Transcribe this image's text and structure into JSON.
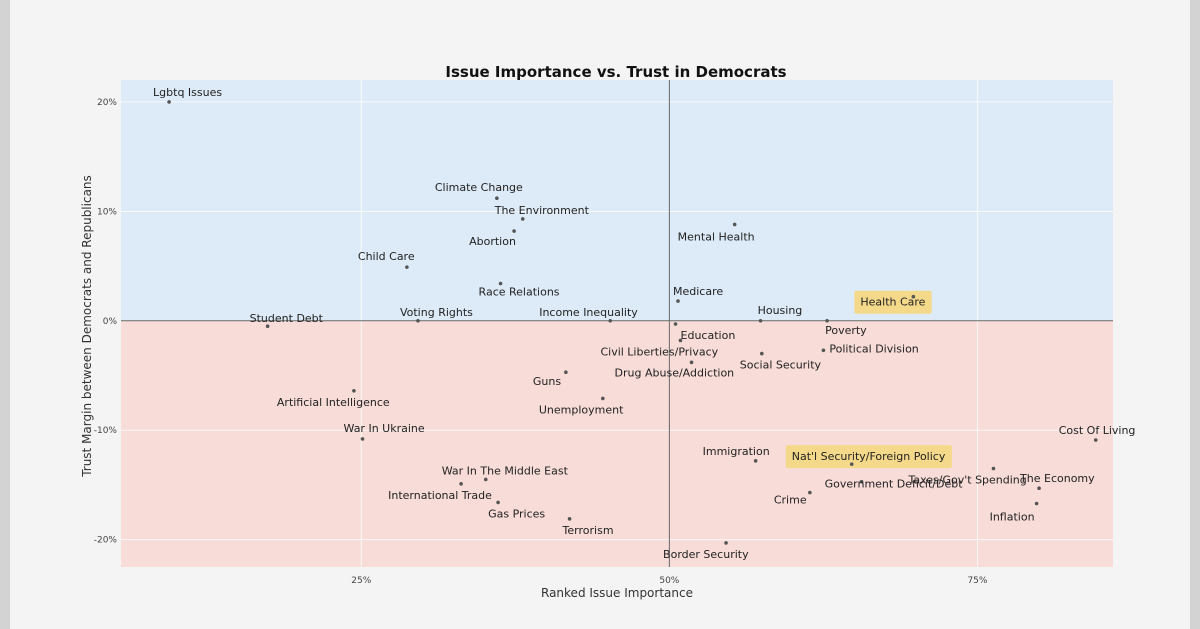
{
  "chart_data": {
    "type": "scatter",
    "title": "Issue Importance vs. Trust in Democrats",
    "xlabel": "Ranked Issue Importance",
    "ylabel": "Trust Margin between Democrats and Republicans",
    "xlim": [
      0.055,
      0.86
    ],
    "ylim": [
      -0.225,
      0.22
    ],
    "x_ticks": [
      {
        "value": 0.25,
        "label": "25%"
      },
      {
        "value": 0.5,
        "label": "50%"
      },
      {
        "value": 0.75,
        "label": "75%"
      }
    ],
    "y_ticks": [
      {
        "value": 0.2,
        "label": "20%"
      },
      {
        "value": 0.1,
        "label": "10%"
      },
      {
        "value": 0.0,
        "label": "0%"
      },
      {
        "value": -0.1,
        "label": "-10%"
      },
      {
        "value": -0.2,
        "label": "-20%"
      }
    ],
    "colors": {
      "positive_region": "#ddeaf7",
      "negative_region": "#f7dcd8",
      "highlight": "#f5d98a",
      "point": "#555555",
      "axis_line": "#666666"
    },
    "points": [
      {
        "label": "Lgbtq Issues",
        "x": 0.094,
        "y": 0.2
      },
      {
        "label": "Climate Change",
        "x": 0.36,
        "y": 0.112
      },
      {
        "label": "The Environment",
        "x": 0.381,
        "y": 0.093
      },
      {
        "label": "Abortion",
        "x": 0.374,
        "y": 0.082
      },
      {
        "label": "Mental Health",
        "x": 0.553,
        "y": 0.088
      },
      {
        "label": "Child Care",
        "x": 0.287,
        "y": 0.049
      },
      {
        "label": "Race Relations",
        "x": 0.363,
        "y": 0.034
      },
      {
        "label": "Medicare",
        "x": 0.507,
        "y": 0.018
      },
      {
        "label": "Health Care",
        "x": 0.698,
        "y": 0.022,
        "highlight": true
      },
      {
        "label": "Student Debt",
        "x": 0.174,
        "y": -0.005
      },
      {
        "label": "Voting Rights",
        "x": 0.296,
        "y": 0.0
      },
      {
        "label": "Income Inequality",
        "x": 0.452,
        "y": 0.0
      },
      {
        "label": "Housing",
        "x": 0.574,
        "y": 0.0
      },
      {
        "label": "Poverty",
        "x": 0.628,
        "y": 0.0
      },
      {
        "label": "Education",
        "x": 0.505,
        "y": -0.003
      },
      {
        "label": "Civil Liberties/Privacy",
        "x": 0.509,
        "y": -0.018
      },
      {
        "label": "Political Division",
        "x": 0.625,
        "y": -0.027
      },
      {
        "label": "Social Security",
        "x": 0.575,
        "y": -0.03
      },
      {
        "label": "Drug Abuse/Addiction",
        "x": 0.518,
        "y": -0.038
      },
      {
        "label": "Guns",
        "x": 0.416,
        "y": -0.047
      },
      {
        "label": "Artificial Intelligence",
        "x": 0.244,
        "y": -0.064
      },
      {
        "label": "Unemployment",
        "x": 0.446,
        "y": -0.071
      },
      {
        "label": "War In Ukraine",
        "x": 0.251,
        "y": -0.108
      },
      {
        "label": "Cost Of Living",
        "x": 0.846,
        "y": -0.109
      },
      {
        "label": "Immigration",
        "x": 0.57,
        "y": -0.128
      },
      {
        "label": "Nat'l Security/Foreign Policy",
        "x": 0.648,
        "y": -0.131,
        "highlight": true
      },
      {
        "label": "Government Deficit/Debt",
        "x": 0.656,
        "y": -0.147
      },
      {
        "label": "The Economy",
        "x": 0.8,
        "y": -0.153
      },
      {
        "label": "War In The Middle East",
        "x": 0.351,
        "y": -0.145
      },
      {
        "label": "International Trade",
        "x": 0.331,
        "y": -0.149
      },
      {
        "label": "Taxes/Gov't Spending",
        "x": 0.763,
        "y": -0.135
      },
      {
        "label": "Crime",
        "x": 0.614,
        "y": -0.157
      },
      {
        "label": "Gas Prices",
        "x": 0.361,
        "y": -0.166
      },
      {
        "label": "Inflation",
        "x": 0.798,
        "y": -0.167
      },
      {
        "label": "Terrorism",
        "x": 0.419,
        "y": -0.181
      },
      {
        "label": "Border Security",
        "x": 0.546,
        "y": -0.203
      }
    ]
  }
}
